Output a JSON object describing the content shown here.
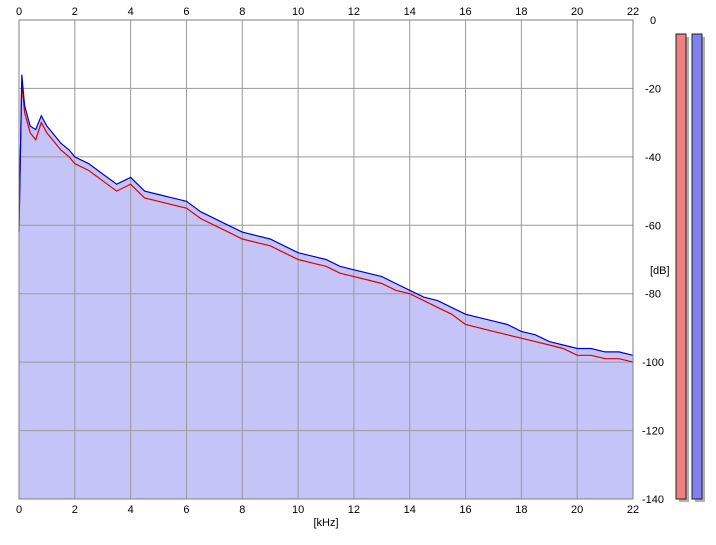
{
  "chart_data": {
    "type": "line",
    "title": "",
    "xlabel": "[kHz]",
    "ylabel": "[dB]",
    "xlim": [
      0,
      22
    ],
    "ylim": [
      -140,
      0
    ],
    "x_ticks": [
      0,
      2,
      4,
      6,
      8,
      10,
      12,
      14,
      16,
      18,
      20,
      22
    ],
    "y_ticks": [
      0,
      -20,
      -40,
      -60,
      -80,
      -100,
      -120,
      -140
    ],
    "x_tick_labels": [
      "0",
      "2",
      "4",
      "6",
      "8",
      "10",
      "12",
      "14",
      "16",
      "18",
      "20",
      "22"
    ],
    "y_tick_labels": [
      "0",
      "-20",
      "-40",
      "-60",
      "-80",
      "-100",
      "-120",
      "-140"
    ],
    "grid": true,
    "fill_color": "#c4c4f8",
    "series": [
      {
        "color": "#dd0000",
        "x": [
          0.0,
          0.1,
          0.2,
          0.4,
          0.6,
          0.8,
          1.0,
          1.2,
          1.5,
          1.8,
          2.0,
          2.5,
          3.0,
          3.5,
          4.0,
          4.5,
          5.0,
          5.5,
          6.0,
          6.5,
          7.0,
          7.5,
          8.0,
          8.5,
          9.0,
          9.5,
          10.0,
          10.5,
          11.0,
          11.5,
          12.0,
          12.5,
          13.0,
          13.5,
          14.0,
          14.5,
          15.0,
          15.5,
          16.0,
          16.5,
          17.0,
          17.5,
          18.0,
          18.5,
          19.0,
          19.5,
          20.0,
          20.5,
          21.0,
          21.5,
          22.0
        ],
        "values": [
          -60,
          -18,
          -27,
          -33,
          -35,
          -30,
          -33,
          -35,
          -38,
          -40,
          -42,
          -44,
          -47,
          -50,
          -48,
          -52,
          -53,
          -54,
          -55,
          -58,
          -60,
          -62,
          -64,
          -65,
          -66,
          -68,
          -70,
          -71,
          -72,
          -74,
          -75,
          -76,
          -77,
          -79,
          -80,
          -82,
          -84,
          -86,
          -89,
          -90,
          -91,
          -92,
          -93,
          -94,
          -95,
          -96,
          -98,
          -98,
          -99,
          -99,
          -100
        ]
      },
      {
        "color": "#0000cc",
        "x": [
          0.0,
          0.1,
          0.2,
          0.4,
          0.6,
          0.8,
          1.0,
          1.2,
          1.5,
          1.8,
          2.0,
          2.5,
          3.0,
          3.5,
          4.0,
          4.5,
          5.0,
          5.5,
          6.0,
          6.5,
          7.0,
          7.5,
          8.0,
          8.5,
          9.0,
          9.5,
          10.0,
          10.5,
          11.0,
          11.5,
          12.0,
          12.5,
          13.0,
          13.5,
          14.0,
          14.5,
          15.0,
          15.5,
          16.0,
          16.5,
          17.0,
          17.5,
          18.0,
          18.5,
          19.0,
          19.5,
          20.0,
          20.5,
          21.0,
          21.5,
          22.0
        ],
        "values": [
          -62,
          -16,
          -25,
          -31,
          -32,
          -28,
          -31,
          -33,
          -36,
          -38,
          -40,
          -42,
          -45,
          -48,
          -46,
          -50,
          -51,
          -52,
          -53,
          -56,
          -58,
          -60,
          -62,
          -63,
          -64,
          -66,
          -68,
          -69,
          -70,
          -72,
          -73,
          -74,
          -75,
          -77,
          -79,
          -81,
          -82,
          -84,
          -86,
          -87,
          -88,
          -89,
          -91,
          -92,
          -94,
          -95,
          -96,
          -96,
          -97,
          -97,
          -98
        ]
      }
    ],
    "level_meters": [
      {
        "color": "#f08080",
        "level": 1.0
      },
      {
        "color": "#8080f0",
        "level": 1.0
      }
    ]
  }
}
